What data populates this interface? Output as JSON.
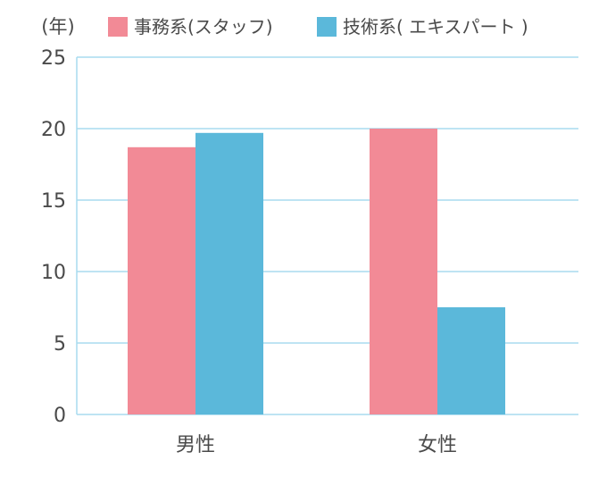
{
  "chart_data": {
    "type": "bar",
    "ylabel": "(年)",
    "categories": [
      "男性",
      "女性"
    ],
    "series": [
      {
        "name": "事務系(スタッフ)",
        "values": [
          18.7,
          20.0
        ],
        "color": "#f28a96"
      },
      {
        "name": "技術系( エキスパート )",
        "values": [
          19.7,
          7.5
        ],
        "color": "#5bb8da"
      }
    ],
    "ylim": [
      0,
      25
    ],
    "yticks": [
      0,
      5,
      10,
      15,
      20,
      25
    ],
    "grid": true,
    "legend_position": "top",
    "grid_color": "#a8dcef",
    "text_color": "#4a4a4a"
  }
}
